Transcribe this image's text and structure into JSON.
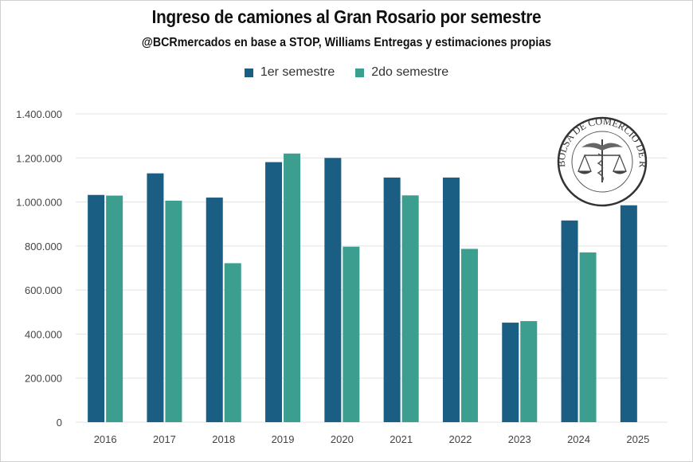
{
  "chart_data": {
    "type": "bar",
    "title": "Ingreso de camiones al Gran Rosario por semestre",
    "subtitle": "@BCRmercados en base a STOP, Williams Entregas y estimaciones propias",
    "xlabel": "",
    "ylabel": "",
    "ylim": [
      0,
      1400000
    ],
    "yticks": [
      0,
      200000,
      400000,
      600000,
      800000,
      1000000,
      1200000,
      1400000
    ],
    "ytick_labels": [
      "0",
      "200.000",
      "400.000",
      "600.000",
      "800.000",
      "1.000.000",
      "1.200.000",
      "1.400.000"
    ],
    "grid": true,
    "legend_position": "top-center",
    "categories": [
      "2016",
      "2017",
      "2018",
      "2019",
      "2020",
      "2021",
      "2022",
      "2023",
      "2024",
      "2025"
    ],
    "series": [
      {
        "name": "1er semestre",
        "color": "#1b5e84",
        "values": [
          1032000,
          1130000,
          1020000,
          1181000,
          1200000,
          1111000,
          1111000,
          452000,
          916000,
          985000
        ]
      },
      {
        "name": "2do semestre",
        "color": "#3b9e8f",
        "values": [
          1029000,
          1006000,
          722000,
          1220000,
          797000,
          1030000,
          787000,
          459000,
          771000,
          null
        ]
      }
    ]
  },
  "logo": {
    "text": "BOLSA DE COMERCIO DE ROSARIO"
  }
}
